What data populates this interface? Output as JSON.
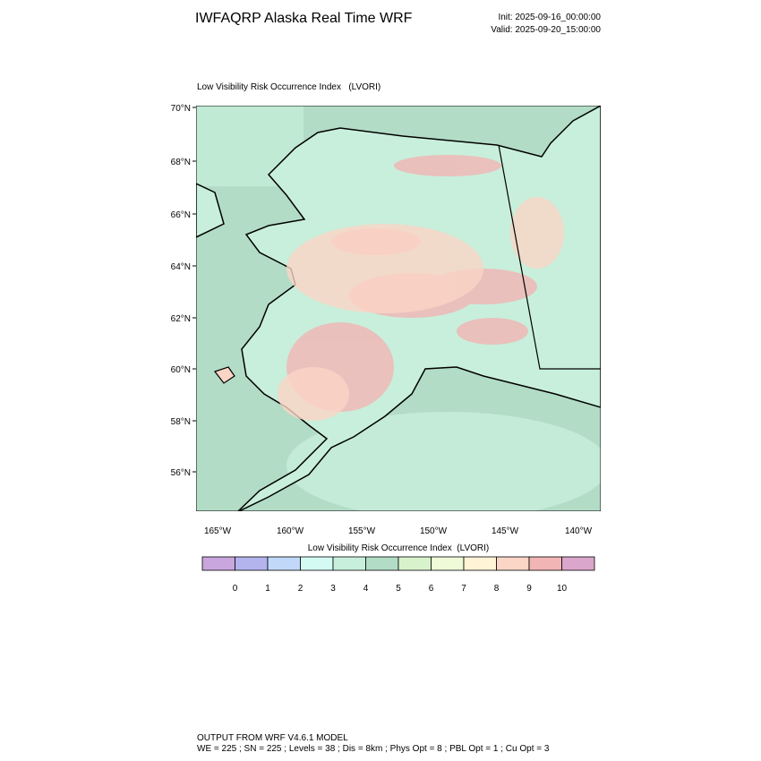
{
  "header": {
    "title": "IWFAQRP Alaska Real Time WRF",
    "init": "Init: 2025-09-16_00:00:00",
    "valid": "Valid: 2025-09-20_15:00:00"
  },
  "map": {
    "title": "Low Visibility Risk Occurrence Index   (LVORI)",
    "lat_labels": [
      "70°N",
      "68°N",
      "66°N",
      "64°N",
      "62°N",
      "60°N",
      "58°N",
      "56°N"
    ],
    "lon_labels": [
      "165°W",
      "160°W",
      "155°W",
      "150°W",
      "145°W",
      "140°W"
    ]
  },
  "colorbar": {
    "title": "Low Visibility Risk Occurrence Index  (LVORI)",
    "colors": [
      "#c9a6dd",
      "#b3b3ee",
      "#c2d8f8",
      "#d3fbf3",
      "#c8efdb",
      "#b2dcc6",
      "#d8f2cc",
      "#eefad8",
      "#fff4d6",
      "#fbd5c6",
      "#f2b5b5",
      "#dba6cb"
    ],
    "labels": [
      0,
      1,
      2,
      3,
      4,
      5,
      6,
      7,
      8,
      9,
      10
    ]
  },
  "footer": {
    "line1": "OUTPUT FROM WRF V4.6.1 MODEL",
    "line2": "WE = 225 ; SN = 225 ; Levels = 38 ; Dis = 8km ; Phys Opt = 8 ; PBL Opt = 1 ; Cu Opt = 3"
  }
}
